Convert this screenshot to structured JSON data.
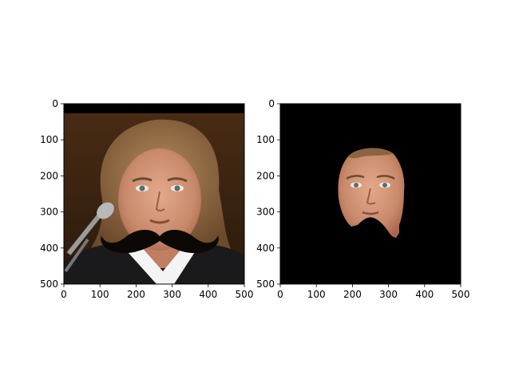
{
  "chart_data": [
    {
      "type": "image",
      "content": "portrait photo of a woman with curly hair, dark jacket and white collar, microphone at left, with a black cartoon mustache drawn over her lower face",
      "xlim": [
        0,
        500
      ],
      "ylim": [
        500,
        0
      ],
      "xticks": [
        0,
        100,
        200,
        300,
        400,
        500
      ],
      "yticks": [
        0,
        100,
        200,
        300,
        400,
        500
      ],
      "xlabel": "",
      "ylabel": "",
      "title": ""
    },
    {
      "type": "image",
      "content": "segmentation mask output: only the woman's face region visible on a black background",
      "xlim": [
        0,
        500
      ],
      "ylim": [
        500,
        0
      ],
      "xticks": [
        0,
        100,
        200,
        300,
        400,
        500
      ],
      "yticks": [
        0,
        100,
        200,
        300,
        400,
        500
      ],
      "xlabel": "",
      "ylabel": "",
      "title": ""
    }
  ],
  "colors": {
    "mask_background": "#000000",
    "mustache": "#0d0806",
    "skin": "#d29478",
    "hair": "#8a6440",
    "jacket": "#1a1a1c",
    "backdrop": "#3a2412"
  }
}
